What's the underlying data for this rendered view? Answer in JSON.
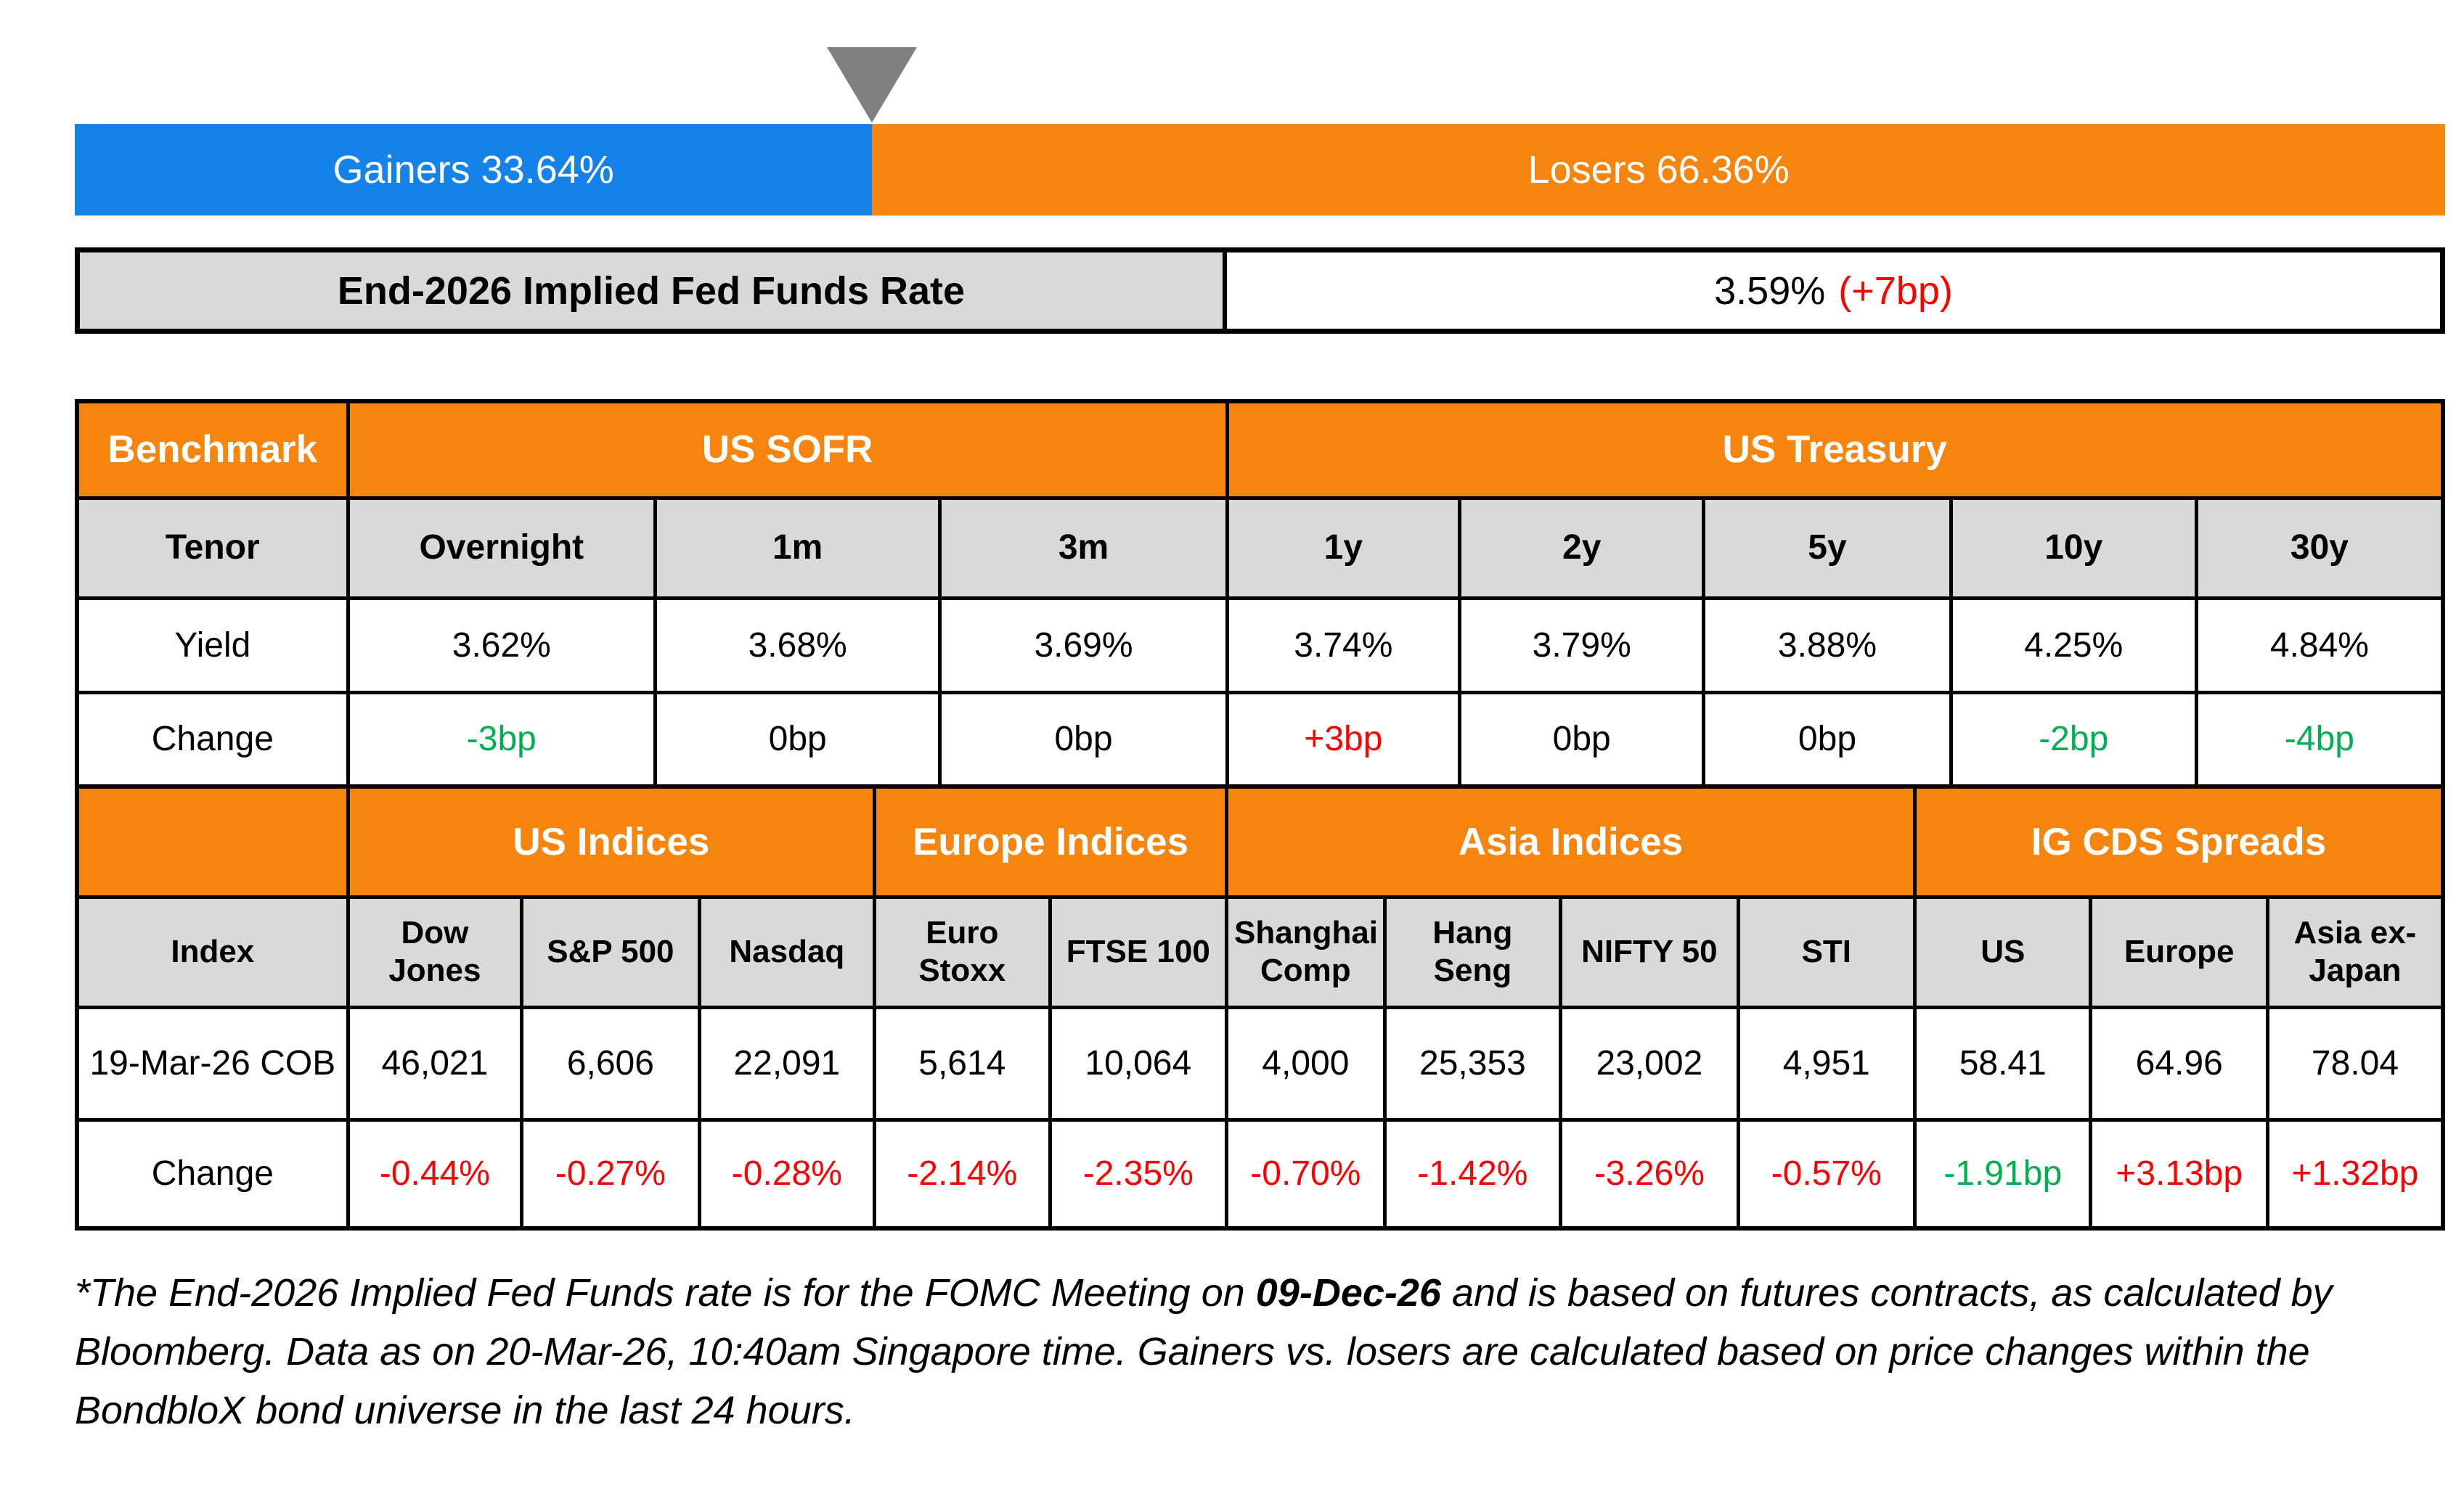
{
  "colors": {
    "blue": "#1482E8",
    "orange": "#F5850E",
    "gray": "#D9D9D9",
    "red": "#FF0000",
    "green": "#00B050",
    "black": "#000000",
    "marker": "#808080"
  },
  "top_bar": {
    "gainers_label": "Gainers 33.64%",
    "losers_label": "Losers 66.36%",
    "gainers_pct": 33.64
  },
  "fed_funds": {
    "label": "End-2026 Implied Fed Funds Rate",
    "value": "3.59%",
    "change": "(+7bp)",
    "change_color": "red"
  },
  "benchmark_table": {
    "corner_label": "Benchmark",
    "group_sofr": "US SOFR",
    "group_treasury": "US Treasury",
    "row_labels": {
      "tenor": "Tenor",
      "yield": "Yield",
      "change": "Change"
    },
    "columns": [
      {
        "tenor": "Overnight",
        "yield": "3.62%",
        "change": "-3bp",
        "change_color": "green"
      },
      {
        "tenor": "1m",
        "yield": "3.68%",
        "change": "0bp",
        "change_color": "black"
      },
      {
        "tenor": "3m",
        "yield": "3.69%",
        "change": "0bp",
        "change_color": "black"
      },
      {
        "tenor": "1y",
        "yield": "3.74%",
        "change": "+3bp",
        "change_color": "red"
      },
      {
        "tenor": "2y",
        "yield": "3.79%",
        "change": "0bp",
        "change_color": "black"
      },
      {
        "tenor": "5y",
        "yield": "3.88%",
        "change": "0bp",
        "change_color": "black"
      },
      {
        "tenor": "10y",
        "yield": "4.25%",
        "change": "-2bp",
        "change_color": "green"
      },
      {
        "tenor": "30y",
        "yield": "4.84%",
        "change": "-4bp",
        "change_color": "green"
      }
    ]
  },
  "indices_table": {
    "groups": {
      "us": "US Indices",
      "europe": "Europe Indices",
      "asia": "Asia Indices",
      "cds": "IG CDS Spreads"
    },
    "row_labels": {
      "index": "Index",
      "date": "19-Mar-26 COB",
      "change": "Change"
    },
    "columns": [
      {
        "name": "Dow Jones",
        "value": "46,021",
        "change": "-0.44%",
        "change_color": "red"
      },
      {
        "name": "S&P 500",
        "value": "6,606",
        "change": "-0.27%",
        "change_color": "red"
      },
      {
        "name": "Nasdaq",
        "value": "22,091",
        "change": "-0.28%",
        "change_color": "red"
      },
      {
        "name": "Euro Stoxx",
        "value": "5,614",
        "change": "-2.14%",
        "change_color": "red"
      },
      {
        "name": "FTSE 100",
        "value": "10,064",
        "change": "-2.35%",
        "change_color": "red"
      },
      {
        "name": "Shanghai Comp",
        "value": "4,000",
        "change": "-0.70%",
        "change_color": "red"
      },
      {
        "name": "Hang Seng",
        "value": "25,353",
        "change": "-1.42%",
        "change_color": "red"
      },
      {
        "name": "NIFTY 50",
        "value": "23,002",
        "change": "-3.26%",
        "change_color": "red"
      },
      {
        "name": "STI",
        "value": "4,951",
        "change": "-0.57%",
        "change_color": "red"
      },
      {
        "name": "US",
        "value": "58.41",
        "change": "-1.91bp",
        "change_color": "green"
      },
      {
        "name": "Europe",
        "value": "64.96",
        "change": "+3.13bp",
        "change_color": "red"
      },
      {
        "name": "Asia ex-Japan",
        "value": "78.04",
        "change": "+1.32bp",
        "change_color": "red"
      }
    ]
  },
  "footnote": {
    "part1": "*The End-2026 Implied Fed Funds rate is for the FOMC Meeting on ",
    "bold_date": "09-Dec-26",
    "part2": " and is based on futures contracts, as calculated by Bloomberg. Data as on 20-Mar-26, 10:40am Singapore time. Gainers vs. losers are calculated based on price changes within the BondbloX bond universe in the last 24 hours."
  }
}
